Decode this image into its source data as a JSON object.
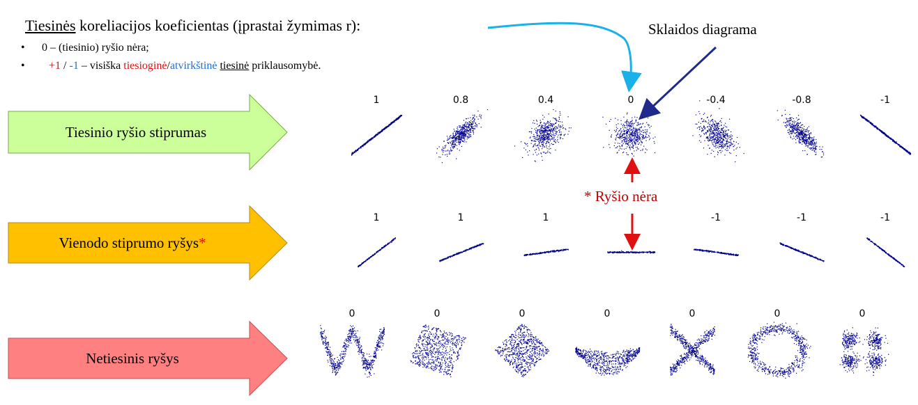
{
  "header": {
    "title_underlined": "Tiesinės",
    "title_rest": " koreliacijos koeficientas (įprastai žymimas r):",
    "bullet_symbol": "•",
    "bullet1": "0 – (tiesinio) ryšio nėra;",
    "bullet2": {
      "plus_one": "+1",
      "slash1": " / ",
      "minus_one": "-1",
      "middle": " – visiška ",
      "direct": "tiesioginė",
      "slash2": "/",
      "inverse": "atvirkštinė",
      "space": " ",
      "linear": "tiesinė",
      "end": " priklausomybė."
    }
  },
  "annotations": {
    "scatter_diagram": "Sklaidos diagrama",
    "no_relation": "* Ryšio nėra"
  },
  "rows": [
    {
      "label": "Tiesinio ryšio stiprumas",
      "asterisk": "",
      "color": "#ccff99",
      "coefficients": [
        "1",
        "0.8",
        "0.4",
        "0",
        "-0.4",
        "-0.8",
        "-1"
      ]
    },
    {
      "label": "Vienodo stiprumo ryšys",
      "asterisk": "*",
      "color": "#ffc000",
      "coefficients": [
        "1",
        "1",
        "1",
        "",
        "-1",
        "-1",
        "-1"
      ]
    },
    {
      "label": "Netiesinis ryšys",
      "asterisk": "",
      "color": "#ff8080",
      "coefficients": [
        "0",
        "0",
        "0",
        "0",
        "0",
        "0",
        "0"
      ]
    }
  ],
  "colors": {
    "points": "#00008b",
    "red": "#e01010",
    "blue": "#1f6fd8",
    "arrow_cyan": "#1ab0e8",
    "arrow_navy": "#1f2a8a"
  }
}
